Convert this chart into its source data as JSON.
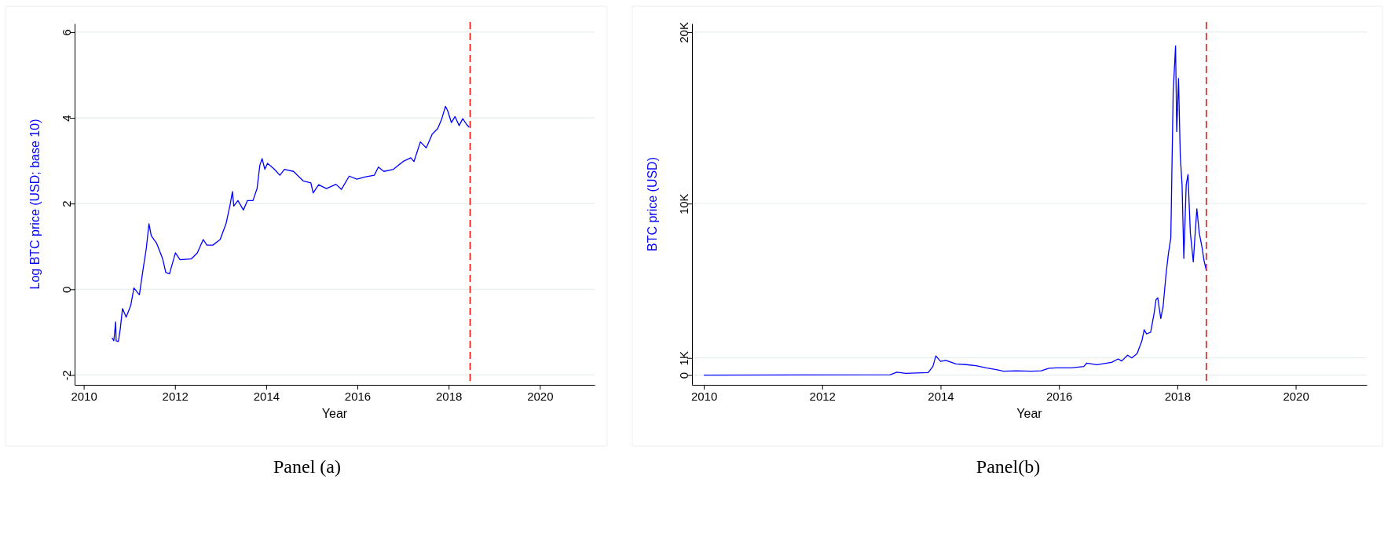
{
  "chart_data": [
    {
      "type": "line",
      "xlabel": "Year",
      "ylabel": "Log BTC price (USD; base 10)",
      "annotations": [
        "Panel (a)"
      ],
      "xlim": [
        2009.8,
        2021.2
      ],
      "ylim": [
        -2.23,
        6.2
      ],
      "xticks": [
        2010,
        2012,
        2014,
        2016,
        2018,
        2020
      ],
      "yticks": [
        -2,
        0,
        2,
        4,
        6
      ],
      "grid": "y",
      "ref_lines": [
        {
          "axis": "x",
          "value": 2018.47,
          "label": null,
          "color": "#ff0000",
          "line_style": "dashed"
        }
      ],
      "series": [
        {
          "color": "#0000ff",
          "x": [
            2010.62,
            2010.66,
            2010.7,
            2010.71,
            2010.76,
            2010.8,
            2010.85,
            2010.93,
            2011.03,
            2011.1,
            2011.22,
            2011.31,
            2011.37,
            2011.43,
            2011.48,
            2011.6,
            2011.73,
            2011.8,
            2011.88,
            2012.01,
            2012.11,
            2012.36,
            2012.49,
            2012.62,
            2012.7,
            2012.83,
            2012.99,
            2013.12,
            2013.21,
            2013.26,
            2013.29,
            2013.38,
            2013.5,
            2013.59,
            2013.71,
            2013.8,
            2013.86,
            2013.91,
            2013.97,
            2014.03,
            2014.18,
            2014.3,
            2014.4,
            2014.6,
            2014.81,
            2014.98,
            2015.03,
            2015.15,
            2015.32,
            2015.53,
            2015.65,
            2015.82,
            2015.99,
            2016.16,
            2016.37,
            2016.46,
            2016.58,
            2016.79,
            2017.0,
            2017.17,
            2017.24,
            2017.38,
            2017.51,
            2017.64,
            2017.76,
            2017.85,
            2017.93,
            2017.98,
            2018.06,
            2018.14,
            2018.23,
            2018.31,
            2018.39,
            2018.45
          ],
          "values": [
            -1.13,
            -1.2,
            -0.76,
            -1.2,
            -1.22,
            -0.93,
            -0.45,
            -0.65,
            -0.38,
            0.03,
            -0.13,
            0.53,
            0.94,
            1.53,
            1.25,
            1.07,
            0.71,
            0.39,
            0.36,
            0.85,
            0.69,
            0.71,
            0.85,
            1.16,
            1.03,
            1.03,
            1.16,
            1.53,
            1.98,
            2.28,
            1.94,
            2.07,
            1.85,
            2.07,
            2.07,
            2.35,
            2.89,
            3.05,
            2.8,
            2.94,
            2.8,
            2.66,
            2.8,
            2.75,
            2.53,
            2.48,
            2.25,
            2.44,
            2.35,
            2.45,
            2.33,
            2.64,
            2.57,
            2.62,
            2.66,
            2.85,
            2.75,
            2.8,
            2.98,
            3.07,
            2.98,
            3.44,
            3.3,
            3.62,
            3.75,
            3.98,
            4.27,
            4.16,
            3.89,
            4.03,
            3.82,
            3.98,
            3.85,
            3.78
          ]
        }
      ]
    },
    {
      "type": "line",
      "xlabel": "Year",
      "ylabel": "BTC price (USD)",
      "annotations": [
        "Panel(b)"
      ],
      "xlim": [
        2009.8,
        2021.2
      ],
      "ylim": [
        -570,
        20500
      ],
      "xticks": [
        2010,
        2012,
        2014,
        2016,
        2018,
        2020
      ],
      "yticks": [
        {
          "value": 0,
          "label": "0"
        },
        {
          "value": 1000,
          "label": "1K"
        },
        {
          "value": 10000,
          "label": "10K"
        },
        {
          "value": 20000,
          "label": "20K"
        }
      ],
      "grid": "y",
      "ref_lines": [
        {
          "axis": "x",
          "value": 2018.49,
          "label": null,
          "color": "#ff0000",
          "line_style": "dashed"
        }
      ],
      "series": [
        {
          "color": "#0000ff",
          "x": [
            2010.0,
            2013.15,
            2013.26,
            2013.41,
            2013.79,
            2013.87,
            2013.92,
            2014.0,
            2014.09,
            2014.26,
            2014.43,
            2014.6,
            2014.77,
            2014.94,
            2015.06,
            2015.28,
            2015.53,
            2015.7,
            2015.83,
            2015.96,
            2016.21,
            2016.42,
            2016.47,
            2016.64,
            2016.89,
            2017.0,
            2017.06,
            2017.16,
            2017.23,
            2017.32,
            2017.4,
            2017.44,
            2017.48,
            2017.55,
            2017.61,
            2017.64,
            2017.67,
            2017.72,
            2017.76,
            2017.81,
            2017.85,
            2017.89,
            2017.93,
            2017.97,
            2017.99,
            2018.02,
            2018.05,
            2018.08,
            2018.11,
            2018.15,
            2018.18,
            2018.22,
            2018.27,
            2018.3,
            2018.33,
            2018.37,
            2018.42,
            2018.45,
            2018.49
          ],
          "values": [
            0,
            20,
            170,
            100,
            150,
            500,
            1120,
            800,
            860,
            650,
            610,
            550,
            420,
            320,
            230,
            250,
            230,
            250,
            400,
            420,
            420,
            500,
            700,
            600,
            740,
            940,
            820,
            1160,
            1000,
            1250,
            1980,
            2640,
            2400,
            2500,
            3650,
            4400,
            4500,
            3300,
            4000,
            5900,
            7100,
            8000,
            16500,
            19200,
            14200,
            17300,
            12800,
            11100,
            6800,
            11100,
            11700,
            8300,
            6600,
            8200,
            9700,
            8300,
            7400,
            6700,
            6100
          ]
        }
      ]
    }
  ]
}
